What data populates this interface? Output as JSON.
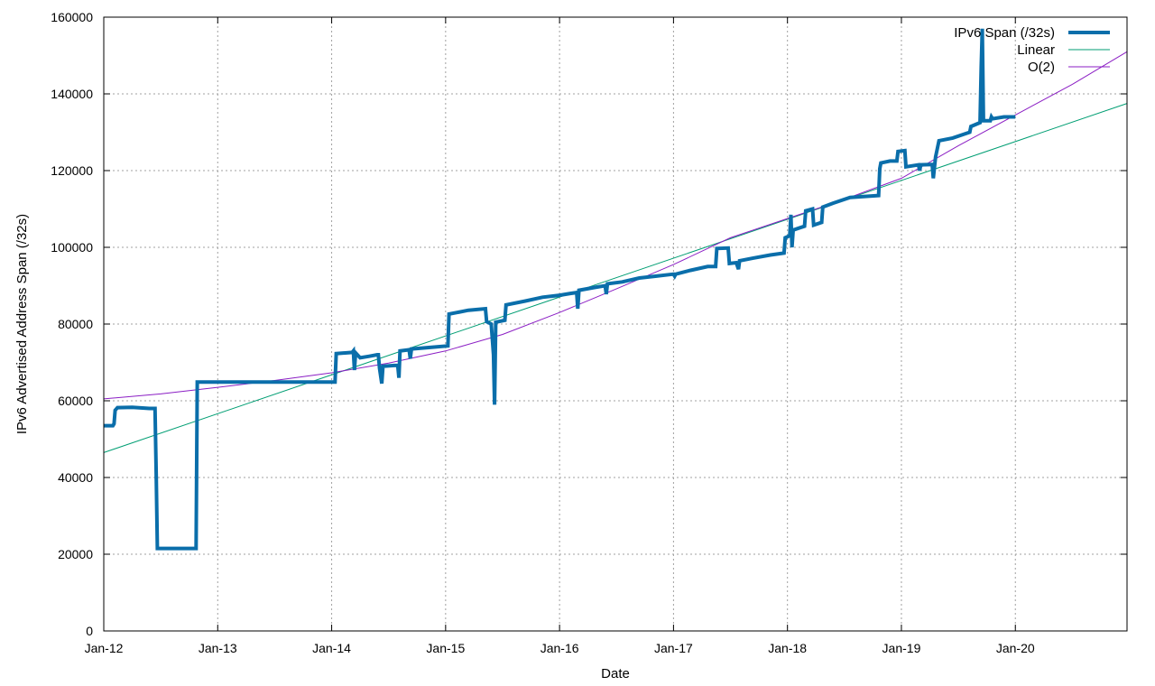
{
  "chart_data": {
    "type": "line",
    "title": "",
    "xlabel": "Date",
    "ylabel": "IPv6 Advertised Address Span (/32s)",
    "x_tick_labels": [
      "Jan-12",
      "Jan-13",
      "Jan-14",
      "Jan-15",
      "Jan-16",
      "Jan-17",
      "Jan-18",
      "Jan-19",
      "Jan-20"
    ],
    "x_unit": "years since Jan-12",
    "xlim": [
      0,
      8.98
    ],
    "ylim": [
      0,
      160000
    ],
    "y_ticks": [
      0,
      20000,
      40000,
      60000,
      80000,
      100000,
      120000,
      140000,
      160000
    ],
    "y_tick_labels": [
      "0",
      "20000",
      "40000",
      "60000",
      "80000",
      "100000",
      "120000",
      "140000",
      "160000"
    ],
    "grid": true,
    "legend_position": "top-right",
    "series": [
      {
        "name": "IPv6 Span (/32s)",
        "color": "#0a6eaa",
        "points": [
          [
            0.0,
            53500
          ],
          [
            0.08,
            53500
          ],
          [
            0.09,
            54000
          ],
          [
            0.1,
            57500
          ],
          [
            0.12,
            58200
          ],
          [
            0.25,
            58300
          ],
          [
            0.4,
            58000
          ],
          [
            0.45,
            58000
          ],
          [
            0.46,
            41000
          ],
          [
            0.47,
            21500
          ],
          [
            0.6,
            21500
          ],
          [
            0.81,
            21500
          ],
          [
            0.82,
            64900
          ],
          [
            1.0,
            64900
          ],
          [
            1.5,
            64900
          ],
          [
            2.03,
            64900
          ],
          [
            2.04,
            72300
          ],
          [
            2.18,
            72600
          ],
          [
            2.19,
            73000
          ],
          [
            2.2,
            68000
          ],
          [
            2.21,
            72500
          ],
          [
            2.25,
            71200
          ],
          [
            2.33,
            71600
          ],
          [
            2.4,
            72000
          ],
          [
            2.41,
            72000
          ],
          [
            2.42,
            68500
          ],
          [
            2.44,
            64500
          ],
          [
            2.45,
            69000
          ],
          [
            2.55,
            69200
          ],
          [
            2.58,
            69200
          ],
          [
            2.59,
            66000
          ],
          [
            2.6,
            73000
          ],
          [
            2.68,
            73300
          ],
          [
            2.69,
            71000
          ],
          [
            2.7,
            73500
          ],
          [
            2.9,
            74000
          ],
          [
            3.02,
            74300
          ],
          [
            3.03,
            82600
          ],
          [
            3.1,
            83000
          ],
          [
            3.2,
            83600
          ],
          [
            3.35,
            84000
          ],
          [
            3.36,
            80600
          ],
          [
            3.4,
            80000
          ],
          [
            3.42,
            72000
          ],
          [
            3.43,
            59000
          ],
          [
            3.44,
            80500
          ],
          [
            3.52,
            81000
          ],
          [
            3.53,
            85000
          ],
          [
            3.7,
            86000
          ],
          [
            3.85,
            87000
          ],
          [
            4.0,
            87500
          ],
          [
            4.1,
            88000
          ],
          [
            4.15,
            88200
          ],
          [
            4.16,
            84000
          ],
          [
            4.17,
            88800
          ],
          [
            4.3,
            89500
          ],
          [
            4.4,
            90000
          ],
          [
            4.41,
            87800
          ],
          [
            4.42,
            90500
          ],
          [
            4.55,
            91000
          ],
          [
            4.7,
            92000
          ],
          [
            4.85,
            92500
          ],
          [
            5.0,
            93000
          ],
          [
            5.01,
            92500
          ],
          [
            5.02,
            93000
          ],
          [
            5.15,
            94000
          ],
          [
            5.3,
            95000
          ],
          [
            5.37,
            95000
          ],
          [
            5.38,
            99700
          ],
          [
            5.48,
            99800
          ],
          [
            5.49,
            95800
          ],
          [
            5.55,
            96000
          ],
          [
            5.57,
            94300
          ],
          [
            5.58,
            96500
          ],
          [
            5.7,
            97200
          ],
          [
            5.85,
            98000
          ],
          [
            5.97,
            98500
          ],
          [
            5.98,
            102500
          ],
          [
            6.02,
            103000
          ],
          [
            6.03,
            108500
          ],
          [
            6.04,
            100000
          ],
          [
            6.05,
            104500
          ],
          [
            6.15,
            105500
          ],
          [
            6.16,
            109500
          ],
          [
            6.22,
            110000
          ],
          [
            6.23,
            105800
          ],
          [
            6.3,
            106500
          ],
          [
            6.31,
            110500
          ],
          [
            6.4,
            111500
          ],
          [
            6.55,
            113000
          ],
          [
            6.8,
            113500
          ],
          [
            6.81,
            120500
          ],
          [
            6.82,
            122000
          ],
          [
            6.9,
            122500
          ],
          [
            6.96,
            122500
          ],
          [
            6.97,
            125000
          ],
          [
            7.03,
            125200
          ],
          [
            7.04,
            121000
          ],
          [
            7.15,
            121500
          ],
          [
            7.16,
            120000
          ],
          [
            7.17,
            121500
          ],
          [
            7.27,
            121600
          ],
          [
            7.28,
            118000
          ],
          [
            7.3,
            123500
          ],
          [
            7.33,
            127800
          ],
          [
            7.45,
            128500
          ],
          [
            7.55,
            129500
          ],
          [
            7.6,
            130000
          ],
          [
            7.61,
            131500
          ],
          [
            7.69,
            132500
          ],
          [
            7.7,
            147000
          ],
          [
            7.71,
            157000
          ],
          [
            7.72,
            133000
          ],
          [
            7.78,
            133000
          ],
          [
            7.79,
            134000
          ],
          [
            7.8,
            133500
          ],
          [
            7.9,
            134000
          ],
          [
            8.0,
            134000
          ]
        ]
      },
      {
        "name": "Linear",
        "color": "#009e73",
        "points": [
          [
            0.0,
            46500
          ],
          [
            8.98,
            137500
          ]
        ]
      },
      {
        "name": "O(2)",
        "color": "#8b1ec4",
        "points": [
          [
            0.0,
            60500
          ],
          [
            0.5,
            61800
          ],
          [
            1.0,
            63500
          ],
          [
            1.5,
            65300
          ],
          [
            2.0,
            67300
          ],
          [
            2.5,
            69800
          ],
          [
            3.0,
            73000
          ],
          [
            3.5,
            77300
          ],
          [
            4.0,
            83000
          ],
          [
            4.5,
            89200
          ],
          [
            5.0,
            95500
          ],
          [
            5.5,
            102500
          ],
          [
            6.0,
            107500
          ],
          [
            6.5,
            112500
          ],
          [
            7.0,
            118000
          ],
          [
            7.5,
            126500
          ],
          [
            8.0,
            134500
          ],
          [
            8.5,
            142500
          ],
          [
            8.98,
            151000
          ]
        ]
      }
    ]
  }
}
